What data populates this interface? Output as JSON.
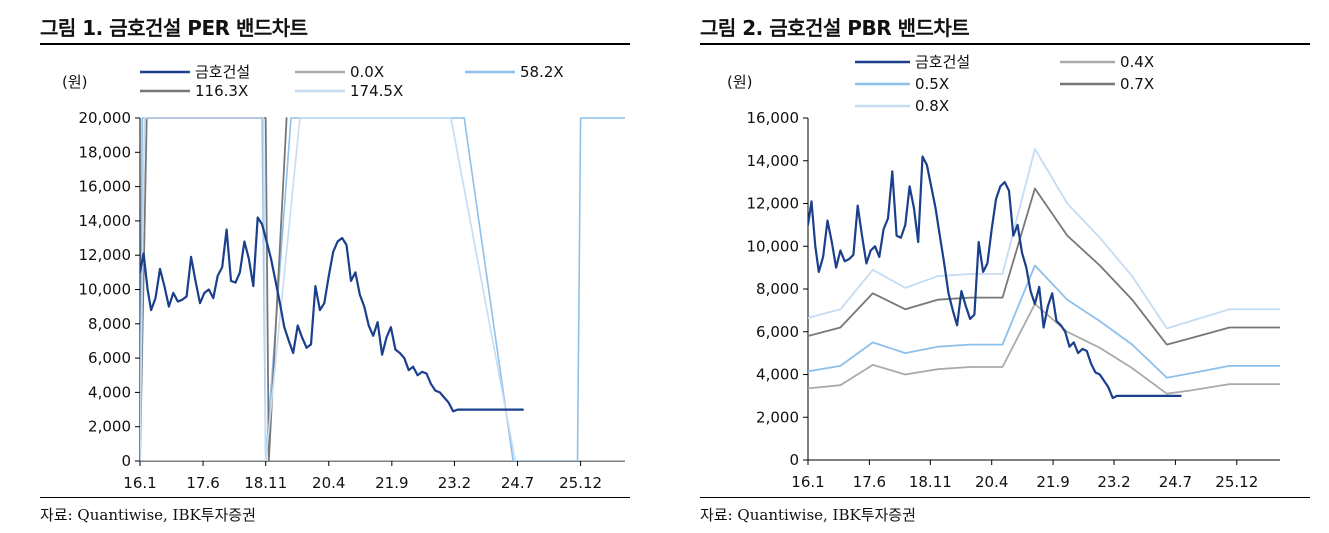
{
  "charts": [
    {
      "title": "그림 1. 금호건설 PER 밴드차트",
      "source": "자료: Quantiwise, IBK투자증권",
      "chart_data": {
        "type": "line",
        "unit_label": "(원)",
        "ylim": [
          0,
          20000
        ],
        "yticks": [
          0,
          2000,
          4000,
          6000,
          8000,
          10000,
          12000,
          14000,
          16000,
          18000,
          20000
        ],
        "ytick_labels": [
          "0",
          "2,000",
          "4,000",
          "6,000",
          "8,000",
          "10,000",
          "12,000",
          "14,000",
          "16,000",
          "18,000",
          "20,000"
        ],
        "xlim": [
          2016.0,
          2026.92
        ],
        "xticks": [
          2016.0,
          2017.42,
          2018.83,
          2020.25,
          2021.67,
          2023.08,
          2024.5,
          2025.92
        ],
        "xtick_labels": [
          "16.1",
          "17.6",
          "18.11",
          "20.4",
          "21.9",
          "23.2",
          "24.7",
          "25.12"
        ],
        "series": [
          {
            "name": "금호건설",
            "color": "#1a3f8c",
            "width": 2.2,
            "x": [
              2016.0,
              2016.08,
              2016.17,
              2016.25,
              2016.35,
              2016.45,
              2016.55,
              2016.65,
              2016.75,
              2016.85,
              2016.95,
              2017.05,
              2017.15,
              2017.25,
              2017.35,
              2017.45,
              2017.55,
              2017.65,
              2017.75,
              2017.85,
              2017.95,
              2018.05,
              2018.15,
              2018.25,
              2018.35,
              2018.45,
              2018.55,
              2018.65,
              2018.75,
              2018.85,
              2018.95,
              2019.05,
              2019.15,
              2019.25,
              2019.35,
              2019.45,
              2019.55,
              2019.65,
              2019.75,
              2019.85,
              2019.95,
              2020.05,
              2020.15,
              2020.25,
              2020.35,
              2020.45,
              2020.55,
              2020.65,
              2020.75,
              2020.85,
              2020.95,
              2021.05,
              2021.15,
              2021.25,
              2021.35,
              2021.45,
              2021.55,
              2021.65,
              2021.75,
              2021.85,
              2021.95,
              2022.05,
              2022.15,
              2022.25,
              2022.35,
              2022.45,
              2022.55,
              2022.65,
              2022.75,
              2022.85,
              2022.95,
              2023.05,
              2023.15,
              2023.25,
              2023.35,
              2023.45,
              2023.55,
              2023.65,
              2023.75,
              2023.85,
              2023.95,
              2024.05,
              2024.15,
              2024.25,
              2024.35,
              2024.45,
              2024.55,
              2024.62
            ],
            "y": [
              11000,
              12100,
              10000,
              8800,
              9500,
              11200,
              10200,
              9000,
              9800,
              9300,
              9400,
              9600,
              11900,
              10500,
              9200,
              9800,
              10000,
              9500,
              10800,
              11300,
              13500,
              10500,
              10400,
              11000,
              12800,
              11800,
              10200,
              14200,
              13800,
              12800,
              11800,
              10500,
              9200,
              7800,
              7000,
              6300,
              7900,
              7200,
              6600,
              6800,
              10200,
              8800,
              9200,
              10800,
              12200,
              12800,
              13000,
              12600,
              10500,
              11000,
              9700,
              9000,
              7900,
              7300,
              8100,
              6200,
              7200,
              7800,
              6500,
              6300,
              6000,
              5300,
              5500,
              5000,
              5200,
              5100,
              4500,
              4100,
              4000,
              3700,
              3400,
              2900,
              3000,
              3000,
              3000,
              3000,
              3000,
              3000,
              3000,
              3000,
              3000,
              3000,
              3000,
              3000,
              3000,
              3000,
              3000,
              3000
            ]
          },
          {
            "name": "0.0X",
            "color": "#aaaaaa",
            "width": 1.6,
            "x": [
              2016.0,
              2018.83,
              2020.25,
              2024.5,
              2025.92,
              2026.92
            ],
            "y": [
              0,
              0,
              0,
              0,
              0,
              0
            ]
          },
          {
            "name": "58.2X",
            "color": "#8ec0ec",
            "width": 1.6,
            "x": [
              2016.0,
              2016.05,
              2018.75,
              2018.83,
              2019.4,
              2023.3,
              2024.4,
              2025.85,
              2025.92,
              2026.92
            ],
            "y": [
              0,
              20000,
              20000,
              0,
              20000,
              20000,
              0,
              0,
              20000,
              20000
            ]
          },
          {
            "name": "116.3X",
            "color": "#777777",
            "width": 1.8,
            "x": [
              2016.0,
              2016.15,
              2018.83,
              2018.9,
              2019.3
            ],
            "y": [
              0,
              20000,
              20000,
              0,
              20000
            ]
          },
          {
            "name": "174.5X",
            "color": "#c5dcf3",
            "width": 1.6,
            "x": [
              2016.0,
              2016.1,
              2018.78,
              2018.83,
              2019.6,
              2023.0,
              2024.45
            ],
            "y": [
              0,
              20000,
              20000,
              0,
              20000,
              20000,
              0
            ]
          }
        ],
        "legend": [
          {
            "label": "금호건설",
            "color": "#1a3f8c"
          },
          {
            "label": "0.0X",
            "color": "#aaaaaa"
          },
          {
            "label": "58.2X",
            "color": "#8ec0ec"
          },
          {
            "label": "116.3X",
            "color": "#777777"
          },
          {
            "label": "174.5X",
            "color": "#c5dcf3"
          }
        ]
      }
    },
    {
      "title": "그림 2. 금호건설 PBR 밴드차트",
      "source": "자료: Quantiwise, IBK투자증권",
      "chart_data": {
        "type": "line",
        "unit_label": "(원)",
        "ylim": [
          0,
          16000
        ],
        "yticks": [
          0,
          2000,
          4000,
          6000,
          8000,
          10000,
          12000,
          14000,
          16000
        ],
        "ytick_labels": [
          "0",
          "2,000",
          "4,000",
          "6,000",
          "8,000",
          "10,000",
          "12,000",
          "14,000",
          "16,000"
        ],
        "xlim": [
          2016.0,
          2026.92
        ],
        "xticks": [
          2016.0,
          2017.42,
          2018.83,
          2020.25,
          2021.67,
          2023.08,
          2024.5,
          2025.92
        ],
        "xtick_labels": [
          "16.1",
          "17.6",
          "18.11",
          "20.4",
          "21.9",
          "23.2",
          "24.7",
          "25.12"
        ],
        "series": [
          {
            "name": "금호건설",
            "color": "#1a3f8c",
            "width": 2.2,
            "x": [
              2016.0,
              2016.08,
              2016.17,
              2016.25,
              2016.35,
              2016.45,
              2016.55,
              2016.65,
              2016.75,
              2016.85,
              2016.95,
              2017.05,
              2017.15,
              2017.25,
              2017.35,
              2017.45,
              2017.55,
              2017.65,
              2017.75,
              2017.85,
              2017.95,
              2018.05,
              2018.15,
              2018.25,
              2018.35,
              2018.45,
              2018.55,
              2018.65,
              2018.75,
              2018.85,
              2018.95,
              2019.05,
              2019.15,
              2019.25,
              2019.35,
              2019.45,
              2019.55,
              2019.65,
              2019.75,
              2019.85,
              2019.95,
              2020.05,
              2020.15,
              2020.25,
              2020.35,
              2020.45,
              2020.55,
              2020.65,
              2020.75,
              2020.85,
              2020.95,
              2021.05,
              2021.15,
              2021.25,
              2021.35,
              2021.45,
              2021.55,
              2021.65,
              2021.75,
              2021.85,
              2021.95,
              2022.05,
              2022.15,
              2022.25,
              2022.35,
              2022.45,
              2022.55,
              2022.65,
              2022.75,
              2022.85,
              2022.95,
              2023.05,
              2023.15,
              2023.25,
              2023.35,
              2023.45,
              2023.55,
              2023.65,
              2023.75,
              2023.85,
              2023.95,
              2024.05,
              2024.15,
              2024.25,
              2024.35,
              2024.45,
              2024.55,
              2024.62
            ],
            "y": [
              11000,
              12100,
              10000,
              8800,
              9500,
              11200,
              10200,
              9000,
              9800,
              9300,
              9400,
              9600,
              11900,
              10500,
              9200,
              9800,
              10000,
              9500,
              10800,
              11300,
              13500,
              10500,
              10400,
              11000,
              12800,
              11800,
              10200,
              14200,
              13800,
              12800,
              11800,
              10500,
              9200,
              7800,
              7000,
              6300,
              7900,
              7200,
              6600,
              6800,
              10200,
              8800,
              9200,
              10800,
              12200,
              12800,
              13000,
              12600,
              10500,
              11000,
              9700,
              9000,
              7900,
              7300,
              8100,
              6200,
              7200,
              7800,
              6500,
              6300,
              6000,
              5300,
              5500,
              5000,
              5200,
              5100,
              4500,
              4100,
              4000,
              3700,
              3400,
              2900,
              3000,
              3000,
              3000,
              3000,
              3000,
              3000,
              3000,
              3000,
              3000,
              3000,
              3000,
              3000,
              3000,
              3000,
              3000,
              3000
            ]
          },
          {
            "name": "0.4X",
            "color": "#aaaaaa",
            "width": 1.8,
            "x": [
              2016.0,
              2016.75,
              2017.5,
              2018.25,
              2019.0,
              2019.75,
              2020.5,
              2021.25,
              2022.0,
              2022.75,
              2023.5,
              2024.3,
              2024.85,
              2025.75,
              2026.92
            ],
            "y": [
              3350,
              3500,
              4450,
              4000,
              4250,
              4350,
              4350,
              7300,
              6000,
              5250,
              4300,
              3100,
              3250,
              3550,
              3550
            ]
          },
          {
            "name": "0.5X",
            "color": "#8ec0ec",
            "width": 1.8,
            "x": [
              2016.0,
              2016.75,
              2017.5,
              2018.25,
              2019.0,
              2019.75,
              2020.5,
              2021.25,
              2022.0,
              2022.75,
              2023.5,
              2024.3,
              2024.85,
              2025.75,
              2026.92
            ],
            "y": [
              4150,
              4400,
              5500,
              5000,
              5300,
              5400,
              5400,
              9100,
              7500,
              6500,
              5400,
              3850,
              4050,
              4400,
              4400
            ]
          },
          {
            "name": "0.7X",
            "color": "#777777",
            "width": 1.8,
            "x": [
              2016.0,
              2016.75,
              2017.5,
              2018.25,
              2019.0,
              2019.75,
              2020.5,
              2021.25,
              2022.0,
              2022.75,
              2023.5,
              2024.3,
              2024.85,
              2025.75,
              2026.92
            ],
            "y": [
              5800,
              6200,
              7800,
              7050,
              7500,
              7600,
              7600,
              12700,
              10500,
              9100,
              7500,
              5400,
              5700,
              6200,
              6200
            ]
          },
          {
            "name": "0.8X",
            "color": "#c5dcf3",
            "width": 1.8,
            "x": [
              2016.0,
              2016.75,
              2017.5,
              2018.25,
              2019.0,
              2019.75,
              2020.5,
              2021.25,
              2022.0,
              2022.75,
              2023.5,
              2024.3,
              2024.85,
              2025.75,
              2026.92
            ],
            "y": [
              6650,
              7050,
              8900,
              8050,
              8600,
              8700,
              8700,
              14550,
              12000,
              10400,
              8600,
              6150,
              6500,
              7050,
              7050
            ]
          }
        ],
        "legend": [
          {
            "label": "금호건설",
            "color": "#1a3f8c"
          },
          {
            "label": "0.4X",
            "color": "#aaaaaa"
          },
          {
            "label": "0.5X",
            "color": "#8ec0ec"
          },
          {
            "label": "0.7X",
            "color": "#777777"
          },
          {
            "label": "0.8X",
            "color": "#c5dcf3"
          }
        ]
      }
    }
  ]
}
